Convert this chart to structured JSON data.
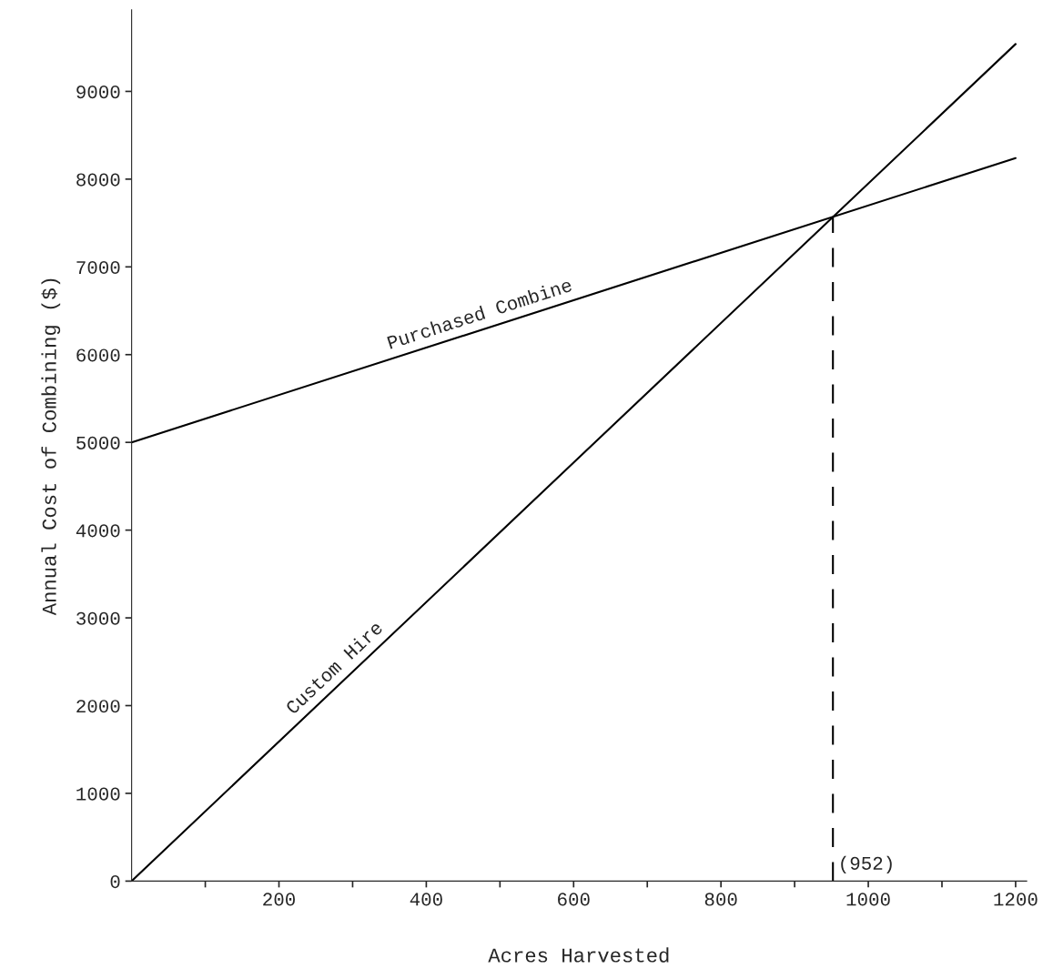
{
  "chart_data": {
    "type": "line",
    "xlabel": "Acres Harvested",
    "ylabel": "Annual Cost of Combining ($)",
    "xlim": [
      0,
      1215
    ],
    "ylim": [
      0,
      9930
    ],
    "xticks": [
      {
        "value": 100,
        "label": null
      },
      200,
      {
        "value": 300,
        "label": null
      },
      400,
      {
        "value": 500,
        "label": null
      },
      600,
      {
        "value": 700,
        "label": null
      },
      800,
      {
        "value": 900,
        "label": null
      },
      1000,
      {
        "value": 1100,
        "label": null
      },
      1200
    ],
    "yticks": [
      0,
      1000,
      2000,
      3000,
      4000,
      5000,
      6000,
      7000,
      8000,
      9000
    ],
    "grid": false,
    "legend": false,
    "marker": "none",
    "series": [
      {
        "name": "Purchased Combine",
        "color": "#000000",
        "x": [
          0,
          1200
        ],
        "values": [
          5000,
          8240
        ]
      },
      {
        "name": "Custom Hire",
        "color": "#000000",
        "x": [
          0,
          1200
        ],
        "values": [
          0,
          9540
        ]
      },
      {
        "color": "#000000",
        "x": [
          952,
          952
        ],
        "values": [
          0,
          7568
        ],
        "line_style": "dashed"
      }
    ],
    "annotations": [
      {
        "text": "(952)",
        "x": 952,
        "y": 0
      }
    ]
  }
}
